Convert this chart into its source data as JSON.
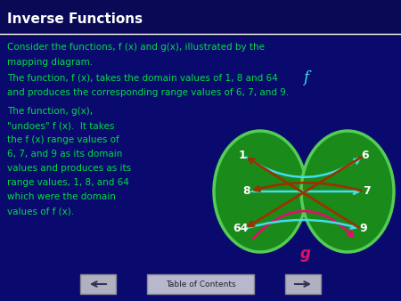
{
  "bg_color": "#0a0a6e",
  "title_text": "Inverse Functions",
  "title_color": "#ffffff",
  "title_bg": "#0a0a6e",
  "text_color": "#00dd44",
  "green_fill": "#1a8a1a",
  "green_edge": "#55cc55",
  "white_color": "#ffffff",
  "cyan_color": "#44ddee",
  "dark_red": "#993300",
  "pink_color": "#dd1166",
  "line1": "Consider the functions, f (x) and g(x), illustrated by the",
  "line2": "mapping diagram.",
  "line3": "The function, f (x), takes the domain values of 1, 8 and 64",
  "line4": "and produces the corresponding range values of 6, 7, and 9.",
  "line5": "The function, g(x),",
  "line6": "\"undoes\" f (x).  It takes",
  "line7": "the f (x) range values of",
  "line8": "6, 7, and 9 as its domain",
  "line9": "values and produces as its",
  "line10": "range values, 1, 8, and 64",
  "line11": "which were the domain",
  "line12": "values of f (x).",
  "footer_text": "Table of Contents"
}
